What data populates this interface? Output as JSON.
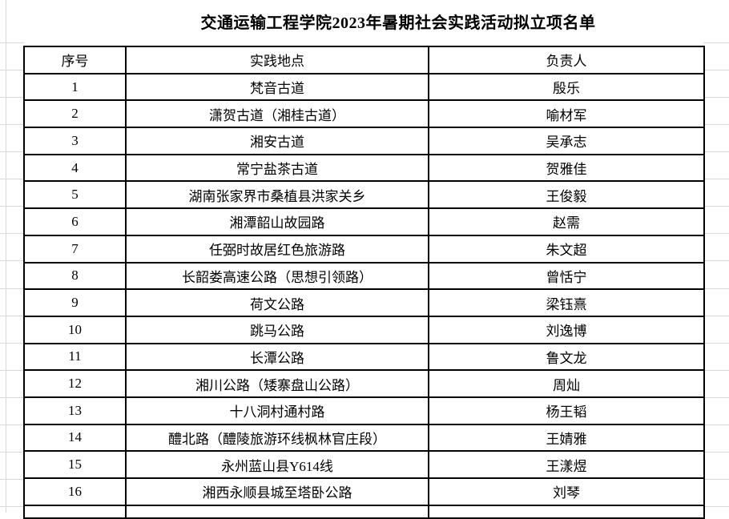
{
  "title": "交通运输工程学院2023年暑期社会实践活动拟立项名单",
  "table": {
    "columns": [
      "序号",
      "实践地点",
      "负责人"
    ],
    "rows": [
      {
        "no": "1",
        "location": "梵音古道",
        "leader": "殷乐"
      },
      {
        "no": "2",
        "location": "潇贺古道（湘桂古道）",
        "leader": "喻材军"
      },
      {
        "no": "3",
        "location": "湘安古道",
        "leader": "吴承志"
      },
      {
        "no": "4",
        "location": "常宁盐茶古道",
        "leader": "贺雅佳"
      },
      {
        "no": "5",
        "location": "湖南张家界市桑植县洪家关乡",
        "leader": "王俊毅"
      },
      {
        "no": "6",
        "location": "湘潭韶山故园路",
        "leader": "赵需"
      },
      {
        "no": "7",
        "location": "任弼时故居红色旅游路",
        "leader": "朱文超"
      },
      {
        "no": "8",
        "location": "长韶娄高速公路（思想引领路）",
        "leader": "曾恬宁"
      },
      {
        "no": "9",
        "location": "荷文公路",
        "leader": "梁钰熹"
      },
      {
        "no": "10",
        "location": "跳马公路",
        "leader": "刘逸博"
      },
      {
        "no": "11",
        "location": "长潭公路",
        "leader": "鲁文龙"
      },
      {
        "no": "12",
        "location": "湘川公路（矮寨盘山公路）",
        "leader": "周灿"
      },
      {
        "no": "13",
        "location": "十八洞村通村路",
        "leader": "杨王韬"
      },
      {
        "no": "14",
        "location": "醴北路（醴陵旅游环线枫林官庄段）",
        "leader": "王婧雅"
      },
      {
        "no": "15",
        "location": "永州蓝山县Y614线",
        "leader": "王漾煜"
      },
      {
        "no": "16",
        "location": "湘西永顺县城至塔卧公路",
        "leader": "刘琴"
      }
    ]
  },
  "colors": {
    "background": "#ffffff",
    "text": "#000000",
    "table_border": "#000000",
    "sheet_gridline": "#d9d9d9"
  }
}
